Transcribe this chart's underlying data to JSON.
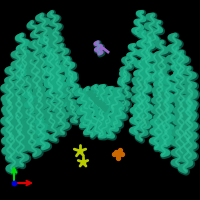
{
  "bg_color": "#000000",
  "teal_main": "#1a9b78",
  "teal_light": "#2ec49a",
  "teal_dark": "#0d6b55",
  "teal_mid": "#18a882",
  "purple_color": "#9966cc",
  "yellow_color": "#b8cc00",
  "orange_color": "#cc6600",
  "axis_ox": 14,
  "axis_oy": 183,
  "figsize": [
    2.0,
    2.0
  ],
  "dpi": 100
}
